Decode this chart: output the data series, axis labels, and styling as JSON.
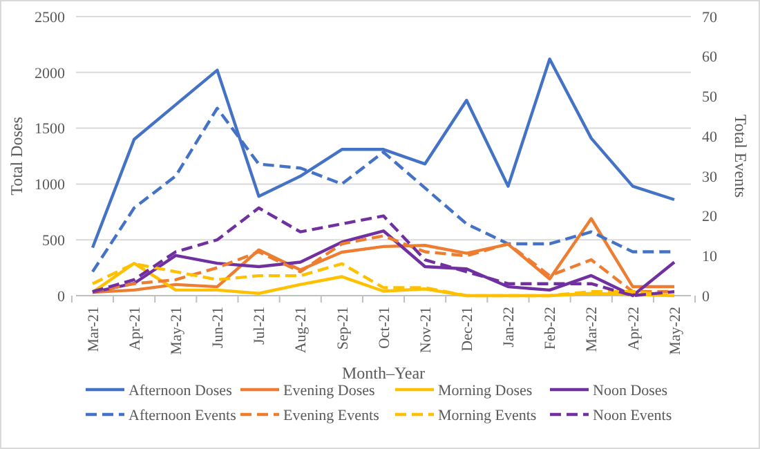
{
  "chart_data": {
    "type": "line",
    "xlabel": "Month–Year",
    "ylabel": "Total Doses",
    "y2label": "Total Events",
    "categories": [
      "Mar-21",
      "Apr-21",
      "May-21",
      "Jun-21",
      "Jul-21",
      "Aug-21",
      "Sep-21",
      "Oct-21",
      "Nov-21",
      "Dec-21",
      "Jan-22",
      "Feb-22",
      "Mar-22",
      "Apr-22",
      "May-22"
    ],
    "ylim": [
      0,
      2500
    ],
    "yticks": [
      0,
      500,
      1000,
      1500,
      2000,
      2500
    ],
    "y2lim": [
      0,
      70
    ],
    "y2ticks": [
      0,
      10,
      20,
      30,
      40,
      50,
      60,
      70
    ],
    "grid": "y",
    "legend": "bottom",
    "series": [
      {
        "name": "Afternoon Doses",
        "color": "#4472c4",
        "line_style": "solid",
        "values": [
          430,
          1400,
          1710,
          2020,
          890,
          1070,
          1310,
          1310,
          1180,
          1750,
          980,
          2120,
          1410,
          980,
          860
        ]
      },
      {
        "name": "Evening Doses",
        "color": "#ed7d31",
        "line_style": "solid",
        "values": [
          30,
          50,
          100,
          80,
          410,
          230,
          390,
          440,
          450,
          380,
          460,
          150,
          690,
          80,
          80
        ]
      },
      {
        "name": "Morning Doses",
        "color": "#ffc000",
        "line_style": "solid",
        "values": [
          30,
          290,
          50,
          50,
          20,
          100,
          170,
          40,
          60,
          0,
          0,
          0,
          20,
          10,
          0
        ]
      },
      {
        "name": "Noon Doses",
        "color": "#7030a0",
        "line_style": "solid",
        "values": [
          30,
          110,
          360,
          290,
          260,
          300,
          480,
          580,
          260,
          240,
          80,
          50,
          180,
          0,
          300
        ]
      },
      {
        "name": "Afternoon Events",
        "color": "#4472c4",
        "line_style": "dashed",
        "axis": "y2",
        "values": [
          6,
          22,
          30,
          47,
          33,
          32,
          28,
          36,
          27,
          18,
          13,
          13,
          16,
          11,
          11
        ]
      },
      {
        "name": "Evening Events",
        "color": "#ed7d31",
        "line_style": "dashed",
        "axis": "y2",
        "values": [
          1,
          3,
          4,
          7,
          11,
          6,
          13,
          15,
          11,
          10,
          13,
          5,
          9,
          1,
          1
        ]
      },
      {
        "name": "Morning Events",
        "color": "#ffc000",
        "line_style": "dashed",
        "axis": "y2",
        "values": [
          3,
          8,
          6,
          4,
          5,
          5,
          8,
          2,
          2,
          0,
          0,
          0,
          1,
          1,
          0
        ]
      },
      {
        "name": "Noon Events",
        "color": "#7030a0",
        "line_style": "dashed",
        "axis": "y2",
        "values": [
          1,
          4,
          11,
          14,
          22,
          16,
          18,
          20,
          9,
          6,
          3,
          3,
          3,
          0,
          1
        ]
      }
    ]
  }
}
